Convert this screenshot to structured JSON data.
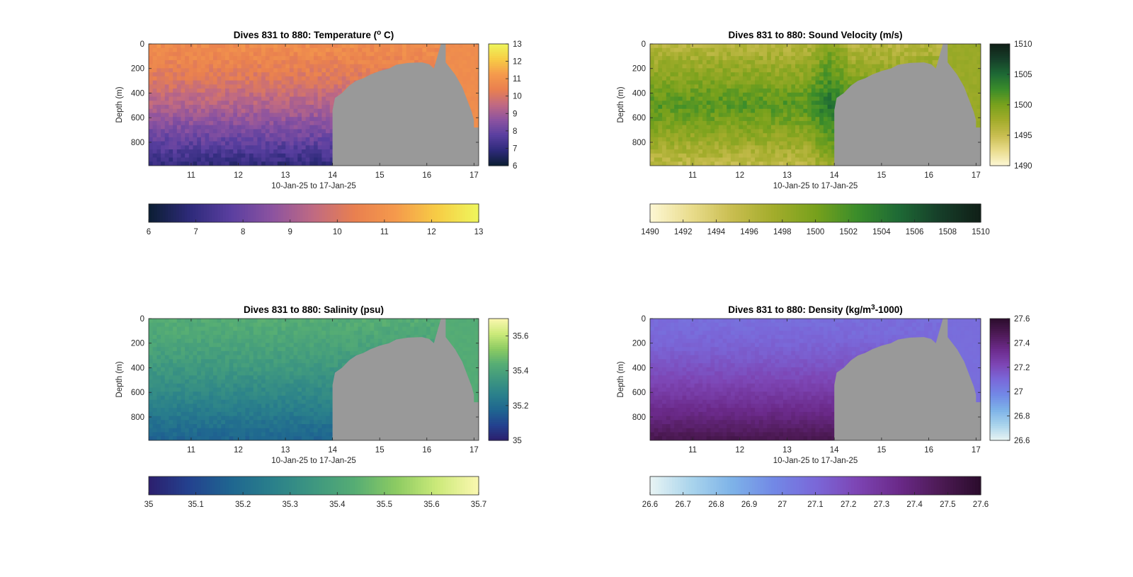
{
  "figure": {
    "background": "#ffffff",
    "mask_color": "#999999"
  },
  "chart_data": [
    {
      "type": "heatmap",
      "title": "Dives 831 to 880: Temperature (",
      "title_sup": "o",
      "title_after": " C)",
      "xlabel": "10-Jan-25 to 17-Jan-25",
      "ylabel": "Depth (m)",
      "x_unit": "day of Jan-2025",
      "xlim": [
        10.1,
        17.1
      ],
      "ylim": [
        0,
        990
      ],
      "xticks": [
        11,
        12,
        13,
        14,
        15,
        16,
        17
      ],
      "yticks": [
        0,
        200,
        400,
        600,
        800
      ],
      "field": {
        "surface": 10.8,
        "bottom": 6.9,
        "offshore": 10.8,
        "variability": 0.35,
        "sensor_min": 6,
        "sensor_max": 13
      },
      "colorbar": {
        "range": [
          6,
          13
        ],
        "ticks_vertical": [
          6,
          7,
          8,
          9,
          10,
          11,
          12,
          13
        ],
        "ticks_horizontal": [
          6,
          7,
          8,
          9,
          10,
          11,
          12,
          13
        ],
        "colormap": [
          "#0b1e33",
          "#2e2a7a",
          "#5a3fa0",
          "#8c53a0",
          "#c06a82",
          "#e9804f",
          "#f59a4c",
          "#f7cd45",
          "#eef65c"
        ]
      },
      "mask": [
        [
          14.0,
          990
        ],
        [
          14.0,
          540
        ],
        [
          14.05,
          440
        ],
        [
          14.2,
          400
        ],
        [
          14.35,
          340
        ],
        [
          14.5,
          300
        ],
        [
          14.65,
          280
        ],
        [
          14.8,
          250
        ],
        [
          15.0,
          220
        ],
        [
          15.2,
          200
        ],
        [
          15.35,
          170
        ],
        [
          15.6,
          155
        ],
        [
          15.9,
          150
        ],
        [
          16.05,
          165
        ],
        [
          16.15,
          200
        ],
        [
          16.3,
          0
        ],
        [
          16.4,
          0
        ],
        [
          16.4,
          150
        ],
        [
          16.6,
          250
        ],
        [
          16.75,
          350
        ],
        [
          16.85,
          450
        ],
        [
          16.95,
          550
        ],
        [
          17.0,
          620
        ],
        [
          17.0,
          680
        ],
        [
          17.1,
          680
        ],
        [
          17.1,
          990
        ]
      ]
    },
    {
      "type": "heatmap",
      "title": "Dives 831 to 880: Sound Velocity (m/s)",
      "xlabel": "10-Jan-25 to 17-Jan-25",
      "ylabel": "Depth (m)",
      "x_unit": "day of Jan-2025",
      "xlim": [
        10.1,
        17.1
      ],
      "ylim": [
        0,
        990
      ],
      "xticks": [
        11,
        12,
        13,
        14,
        15,
        16,
        17
      ],
      "yticks": [
        0,
        200,
        400,
        600,
        800
      ],
      "field": {
        "surface": 1496,
        "mid": 1501.5,
        "bottom": 1495.5,
        "mid_depth": 500,
        "offshore": 1498,
        "variability": 1.2
      },
      "colorbar": {
        "range": [
          1490,
          1510
        ],
        "ticks_vertical": [
          1490,
          1495,
          1500,
          1505,
          1510
        ],
        "ticks_horizontal": [
          1490,
          1492,
          1494,
          1496,
          1498,
          1500,
          1502,
          1504,
          1506,
          1508,
          1510
        ],
        "colormap": [
          "#fdf7d4",
          "#e9dc8c",
          "#c8bd4f",
          "#a2ac2b",
          "#78a11c",
          "#3b8d2a",
          "#1e6a35",
          "#163e29",
          "#101f17"
        ]
      },
      "mask": [
        [
          14.0,
          990
        ],
        [
          14.0,
          540
        ],
        [
          14.05,
          440
        ],
        [
          14.2,
          400
        ],
        [
          14.35,
          340
        ],
        [
          14.5,
          300
        ],
        [
          14.65,
          280
        ],
        [
          14.8,
          250
        ],
        [
          15.0,
          220
        ],
        [
          15.2,
          200
        ],
        [
          15.35,
          170
        ],
        [
          15.6,
          155
        ],
        [
          15.9,
          150
        ],
        [
          16.05,
          165
        ],
        [
          16.15,
          200
        ],
        [
          16.3,
          0
        ],
        [
          16.4,
          0
        ],
        [
          16.4,
          150
        ],
        [
          16.6,
          250
        ],
        [
          16.75,
          350
        ],
        [
          16.85,
          450
        ],
        [
          16.95,
          550
        ],
        [
          17.0,
          620
        ],
        [
          17.0,
          680
        ],
        [
          17.1,
          680
        ],
        [
          17.1,
          990
        ]
      ]
    },
    {
      "type": "heatmap",
      "title": "Dives 831 to 880: Salinity (psu)",
      "xlabel": "10-Jan-25 to 17-Jan-25",
      "ylabel": "Depth (m)",
      "x_unit": "day of Jan-2025",
      "xlim": [
        10.1,
        17.1
      ],
      "ylim": [
        0,
        990
      ],
      "xticks": [
        11,
        12,
        13,
        14,
        15,
        16,
        17
      ],
      "yticks": [
        0,
        200,
        400,
        600,
        800
      ],
      "field": {
        "surface": 35.43,
        "bottom": 35.17,
        "offshore": 35.43,
        "variability": 0.025
      },
      "colorbar": {
        "range": [
          35,
          35.7
        ],
        "ticks_vertical": [
          35,
          35.2,
          35.4,
          35.6
        ],
        "ticks_horizontal": [
          35,
          35.1,
          35.2,
          35.3,
          35.4,
          35.5,
          35.6,
          35.7
        ],
        "colormap": [
          "#2c1f6e",
          "#23428f",
          "#1f6690",
          "#2a808b",
          "#3e9780",
          "#56ad74",
          "#8ccb62",
          "#ccea7a",
          "#fbf7b0"
        ]
      },
      "mask": [
        [
          14.0,
          990
        ],
        [
          14.0,
          540
        ],
        [
          14.05,
          440
        ],
        [
          14.2,
          400
        ],
        [
          14.35,
          340
        ],
        [
          14.5,
          300
        ],
        [
          14.65,
          280
        ],
        [
          14.8,
          250
        ],
        [
          15.0,
          220
        ],
        [
          15.2,
          200
        ],
        [
          15.35,
          170
        ],
        [
          15.6,
          155
        ],
        [
          15.9,
          150
        ],
        [
          16.05,
          165
        ],
        [
          16.15,
          200
        ],
        [
          16.3,
          0
        ],
        [
          16.4,
          0
        ],
        [
          16.4,
          150
        ],
        [
          16.6,
          250
        ],
        [
          16.75,
          350
        ],
        [
          16.85,
          450
        ],
        [
          16.95,
          550
        ],
        [
          17.0,
          620
        ],
        [
          17.0,
          680
        ],
        [
          17.1,
          680
        ],
        [
          17.1,
          990
        ]
      ]
    },
    {
      "type": "heatmap",
      "title": "Dives 831 to 880: Density (kg/m",
      "title_sup": "3",
      "title_after": "-1000)",
      "xlabel": "10-Jan-25 to 17-Jan-25",
      "ylabel": "Depth (m)",
      "x_unit": "day of Jan-2025",
      "xlim": [
        10.1,
        17.1
      ],
      "ylim": [
        0,
        990
      ],
      "xticks": [
        11,
        12,
        13,
        14,
        15,
        16,
        17
      ],
      "yticks": [
        0,
        200,
        400,
        600,
        800
      ],
      "field": {
        "surface": 27.08,
        "bottom": 27.5,
        "offshore": 27.08,
        "variability": 0.02
      },
      "colorbar": {
        "range": [
          26.6,
          27.6
        ],
        "ticks_vertical": [
          26.6,
          26.8,
          27,
          27.2,
          27.4,
          27.6
        ],
        "ticks_horizontal": [
          26.6,
          26.7,
          26.8,
          26.9,
          27,
          27.1,
          27.2,
          27.3,
          27.4,
          27.5,
          27.6
        ],
        "colormap": [
          "#e8f4f4",
          "#a9d4ec",
          "#7db2e8",
          "#7288e6",
          "#7a68d9",
          "#7d45b4",
          "#6b2a8a",
          "#4d1a55",
          "#2b0c2c"
        ]
      },
      "mask": [
        [
          14.0,
          990
        ],
        [
          14.0,
          540
        ],
        [
          14.05,
          440
        ],
        [
          14.2,
          400
        ],
        [
          14.35,
          340
        ],
        [
          14.5,
          300
        ],
        [
          14.65,
          280
        ],
        [
          14.8,
          250
        ],
        [
          15.0,
          220
        ],
        [
          15.2,
          200
        ],
        [
          15.35,
          170
        ],
        [
          15.6,
          155
        ],
        [
          15.9,
          150
        ],
        [
          16.05,
          165
        ],
        [
          16.15,
          200
        ],
        [
          16.3,
          0
        ],
        [
          16.4,
          0
        ],
        [
          16.4,
          150
        ],
        [
          16.6,
          250
        ],
        [
          16.75,
          350
        ],
        [
          16.85,
          450
        ],
        [
          16.95,
          550
        ],
        [
          17.0,
          620
        ],
        [
          17.0,
          680
        ],
        [
          17.1,
          680
        ],
        [
          17.1,
          990
        ]
      ]
    }
  ]
}
